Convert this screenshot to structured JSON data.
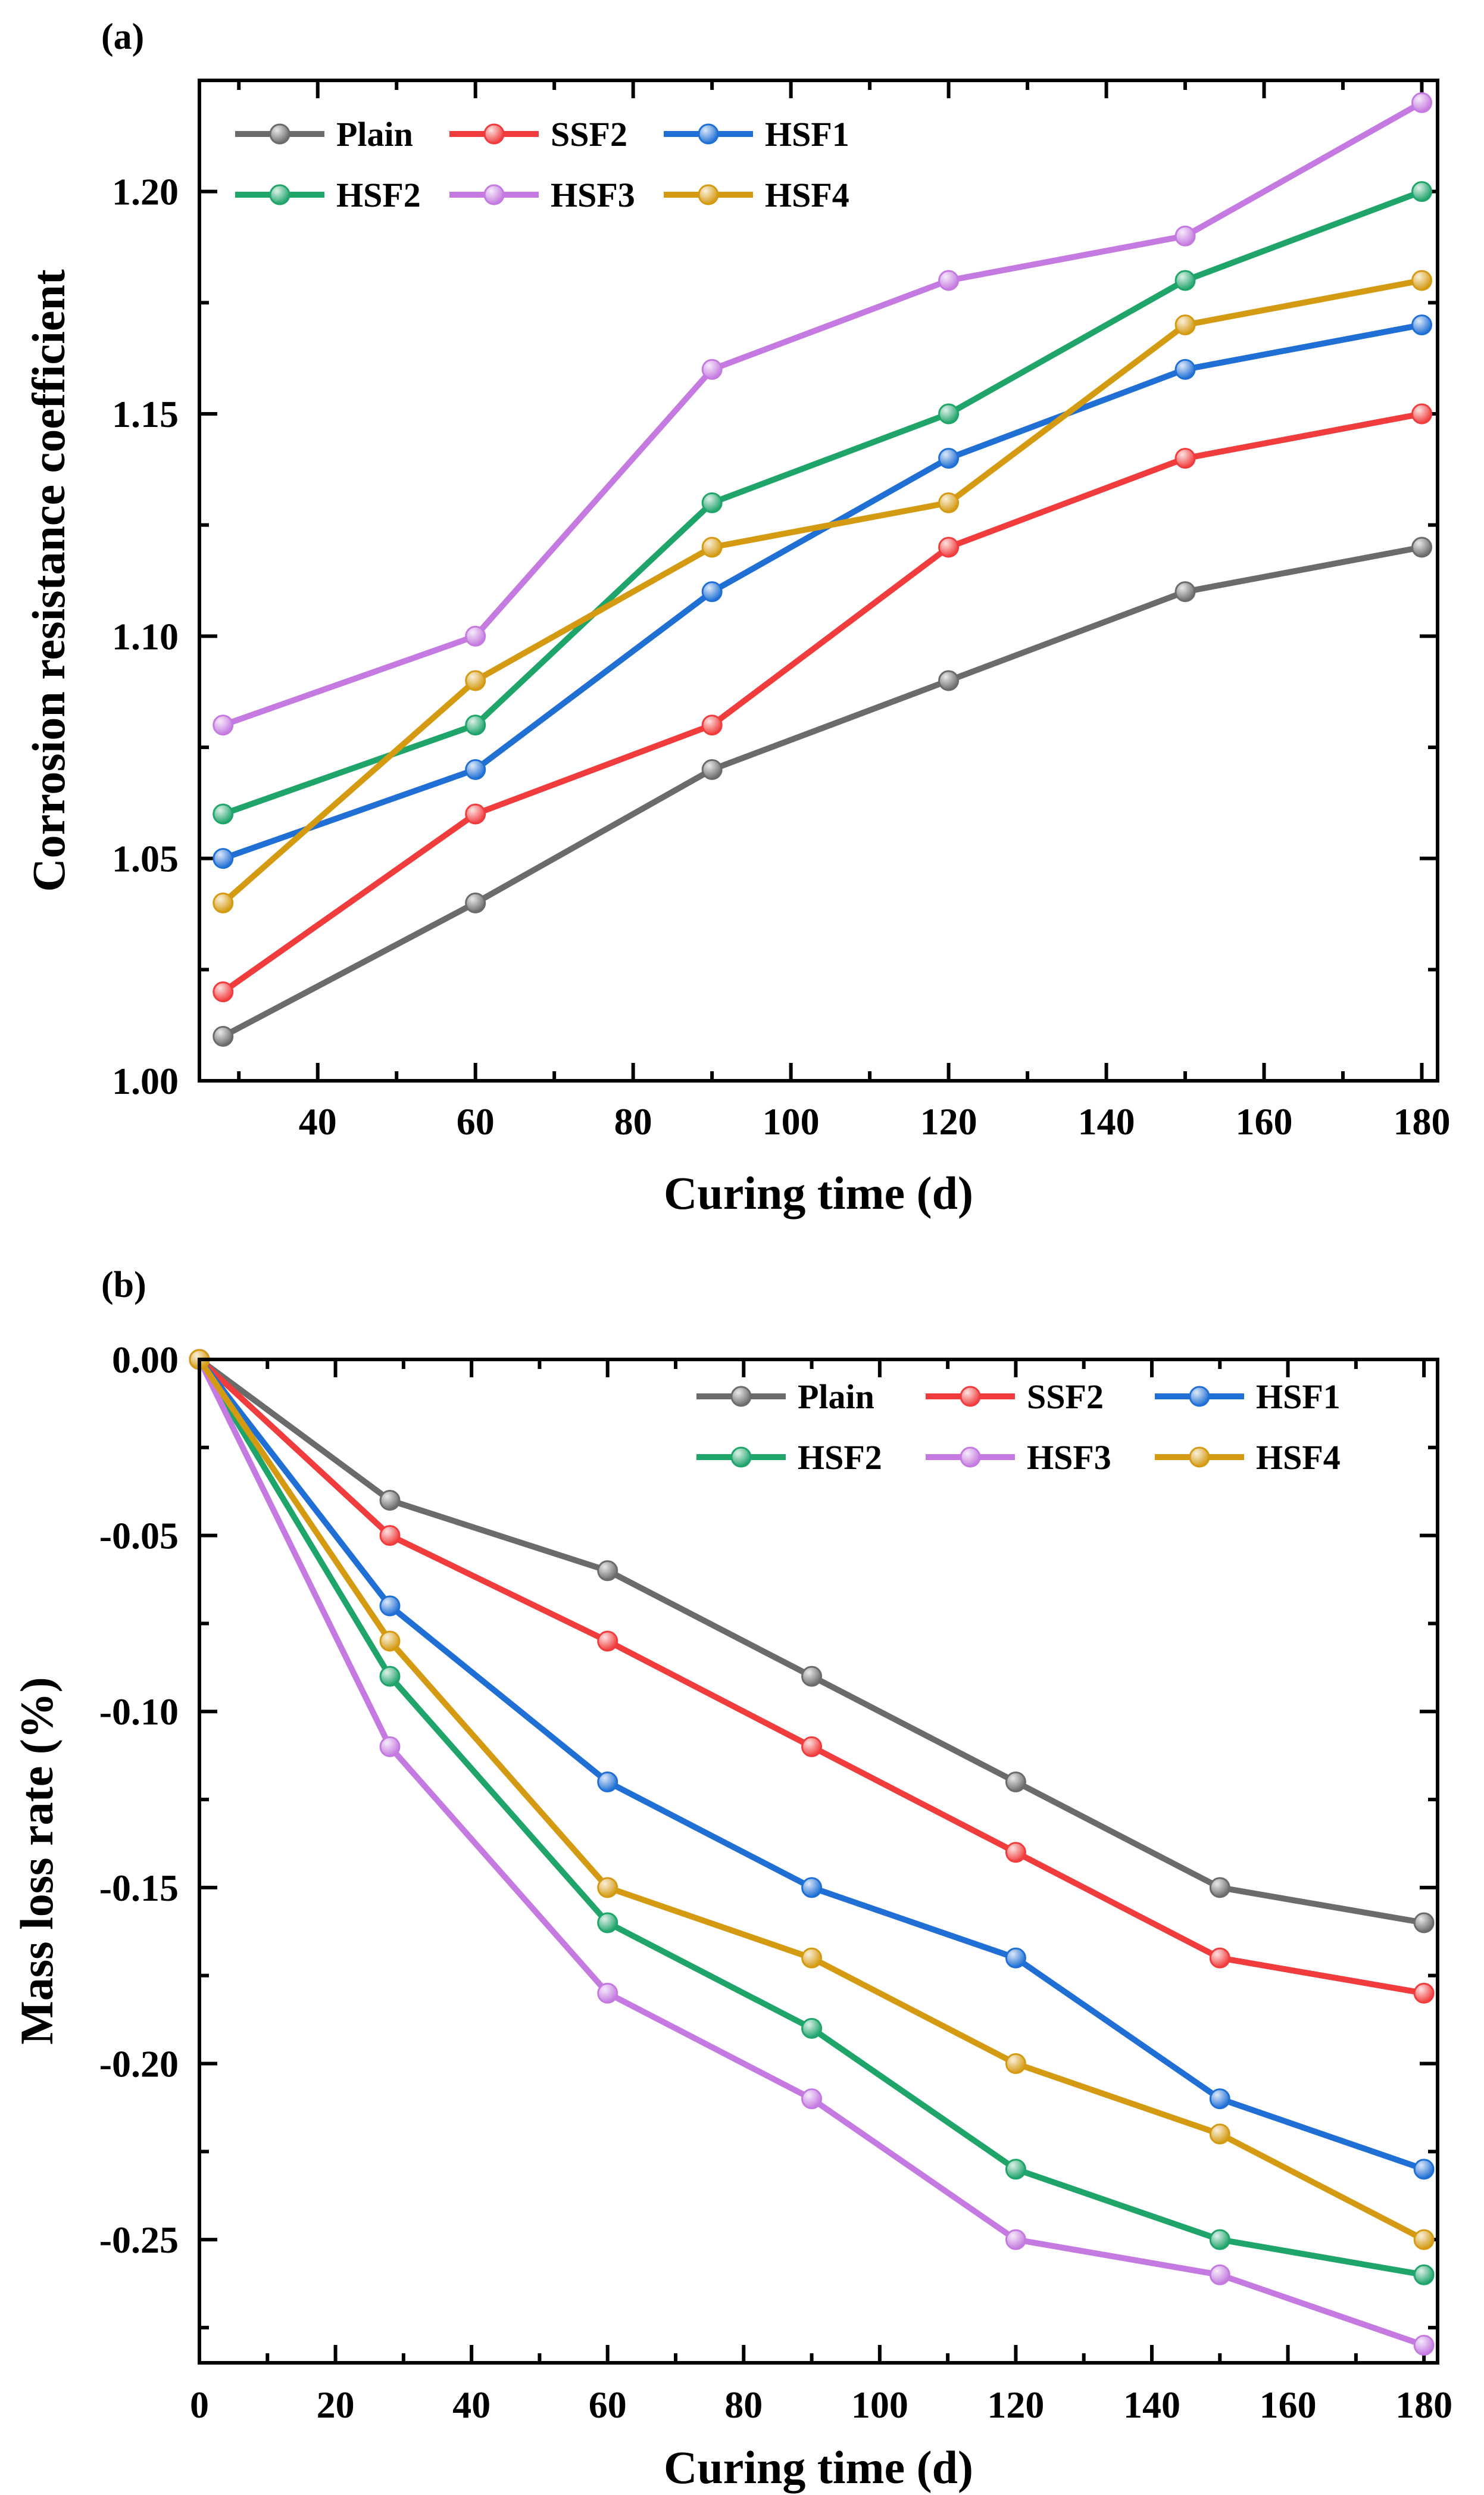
{
  "colors": {
    "Plain": "#6b6b6b",
    "SSF2": "#f03c3c",
    "HSF1": "#1f6fd4",
    "HSF2": "#1fa46a",
    "HSF3": "#c47ae0",
    "HSF4": "#d49a12"
  },
  "chart_data": [
    {
      "panel_label": "(a)",
      "type": "line",
      "title": "",
      "xlabel": "Curing time (d)",
      "ylabel": "Corrosion resistance coefficient",
      "xlim": [
        25,
        182
      ],
      "ylim": [
        1.0,
        1.225
      ],
      "xticks": [
        40,
        60,
        80,
        100,
        120,
        140,
        160,
        180
      ],
      "yticks": [
        1.0,
        1.05,
        1.1,
        1.15,
        1.2
      ],
      "ytick_labels": [
        "1.00",
        "1.05",
        "1.10",
        "1.15",
        "1.20"
      ],
      "x": [
        28,
        60,
        90,
        120,
        150,
        180
      ],
      "legend_position": "top-left",
      "series": [
        {
          "name": "Plain",
          "values": [
            1.01,
            1.04,
            1.07,
            1.09,
            1.11,
            1.12
          ]
        },
        {
          "name": "SSF2",
          "values": [
            1.02,
            1.06,
            1.08,
            1.12,
            1.14,
            1.15
          ]
        },
        {
          "name": "HSF1",
          "values": [
            1.05,
            1.07,
            1.11,
            1.14,
            1.16,
            1.17
          ]
        },
        {
          "name": "HSF2",
          "values": [
            1.06,
            1.08,
            1.13,
            1.15,
            1.18,
            1.2
          ]
        },
        {
          "name": "HSF3",
          "values": [
            1.08,
            1.1,
            1.16,
            1.18,
            1.19,
            1.22
          ]
        },
        {
          "name": "HSF4",
          "values": [
            1.04,
            1.09,
            1.12,
            1.13,
            1.17,
            1.18
          ]
        }
      ]
    },
    {
      "panel_label": "(b)",
      "type": "line",
      "title": "",
      "xlabel": "Curing time (d)",
      "ylabel": "Mass loss rate (%)",
      "xlim": [
        0,
        182
      ],
      "ylim": [
        -0.285,
        0.0
      ],
      "xticks": [
        0,
        20,
        40,
        60,
        80,
        100,
        120,
        140,
        160,
        180
      ],
      "yticks": [
        0.0,
        -0.05,
        -0.1,
        -0.15,
        -0.2,
        -0.25
      ],
      "ytick_labels": [
        "0.00",
        "-0.05",
        "-0.10",
        "-0.15",
        "-0.20",
        "-0.25"
      ],
      "x": [
        0,
        28,
        60,
        90,
        120,
        150,
        180
      ],
      "legend_position": "top-right",
      "series": [
        {
          "name": "Plain",
          "values": [
            0,
            -0.04,
            -0.06,
            -0.09,
            -0.12,
            -0.15,
            -0.16
          ]
        },
        {
          "name": "SSF2",
          "values": [
            0,
            -0.05,
            -0.08,
            -0.11,
            -0.14,
            -0.17,
            -0.18
          ]
        },
        {
          "name": "HSF1",
          "values": [
            0,
            -0.07,
            -0.12,
            -0.15,
            -0.17,
            -0.21,
            -0.23
          ]
        },
        {
          "name": "HSF2",
          "values": [
            0,
            -0.09,
            -0.16,
            -0.19,
            -0.23,
            -0.25,
            -0.26
          ]
        },
        {
          "name": "HSF3",
          "values": [
            0,
            -0.11,
            -0.18,
            -0.21,
            -0.25,
            -0.26,
            -0.28
          ]
        },
        {
          "name": "HSF4",
          "values": [
            0,
            -0.08,
            -0.15,
            -0.17,
            -0.2,
            -0.22,
            -0.25
          ]
        }
      ]
    }
  ]
}
